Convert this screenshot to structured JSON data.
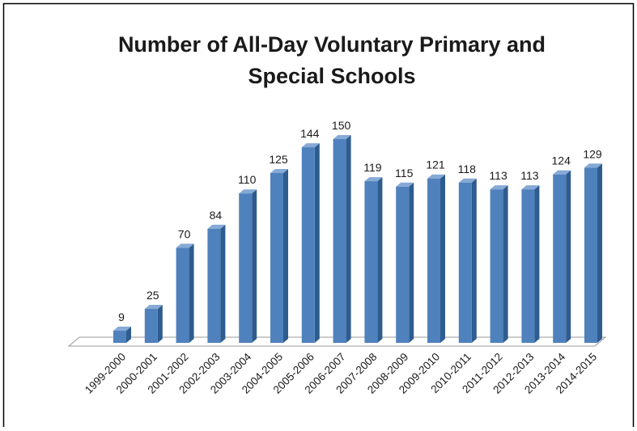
{
  "chart_data": {
    "type": "bar3d",
    "title": [
      "Number of All-Day Voluntary Primary and",
      "Special Schools"
    ],
    "categories": [
      "1999-2000",
      "2000-2001",
      "2001-2002",
      "2002-2003",
      "2003-2004",
      "2004-2005",
      "2005-2006",
      "2006-2007",
      "2007-2008",
      "2008-2009",
      "2009-2010",
      "2010-2011",
      "2011-2012",
      "2012-2013",
      "2013-2014",
      "2014-2015"
    ],
    "values": [
      9,
      25,
      70,
      84,
      110,
      125,
      144,
      150,
      119,
      115,
      121,
      118,
      113,
      113,
      124,
      129
    ],
    "color": "#4f81bd"
  }
}
